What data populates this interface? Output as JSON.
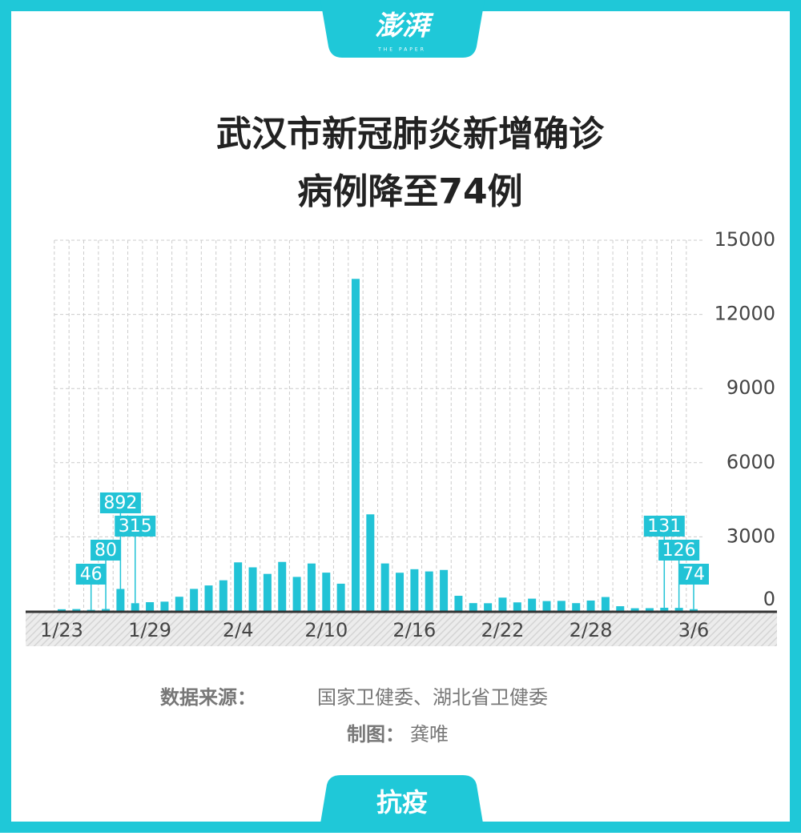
{
  "header": {
    "logo": "澎湃",
    "logo_sub": "THE PAPER"
  },
  "chart_data": {
    "type": "bar",
    "title_lines": [
      "武汉市新冠肺炎新增确诊",
      "病例降至74例"
    ],
    "categories": [
      "1/23",
      null,
      null,
      null,
      null,
      null,
      "1/29",
      null,
      null,
      null,
      null,
      null,
      "2/4",
      null,
      null,
      null,
      null,
      null,
      "2/10",
      null,
      null,
      null,
      null,
      null,
      "2/16",
      null,
      null,
      null,
      null,
      null,
      "2/22",
      null,
      null,
      null,
      null,
      null,
      "2/28",
      null,
      null,
      null,
      null,
      null,
      null,
      "3/6"
    ],
    "values": [
      70,
      77,
      46,
      80,
      892,
      315,
      356,
      378,
      576,
      894,
      1033,
      1242,
      1967,
      1766,
      1501,
      1985,
      1379,
      1921,
      1552,
      1104,
      13436,
      3910,
      1923,
      1548,
      1690,
      1600,
      1660,
      615,
      319,
      314,
      541,
      348,
      499,
      401,
      409,
      318,
      423,
      565,
      193,
      111,
      114,
      131,
      126,
      74
    ],
    "value_labels": [
      null,
      null,
      46,
      80,
      892,
      315,
      null,
      null,
      null,
      null,
      null,
      null,
      null,
      null,
      null,
      null,
      null,
      null,
      null,
      null,
      null,
      null,
      null,
      null,
      null,
      null,
      null,
      null,
      null,
      null,
      null,
      null,
      null,
      null,
      null,
      null,
      null,
      null,
      null,
      null,
      null,
      131,
      126,
      74
    ],
    "color": "#22c3d6",
    "ylim": [
      0,
      15000
    ],
    "yticks": [
      0,
      3000,
      6000,
      9000,
      12000,
      15000
    ],
    "grid": true
  },
  "source": {
    "label": "数据来源：",
    "text": "国家卫健委、湖北省卫健委"
  },
  "credit": {
    "label": "制图：",
    "text": "龚唯"
  },
  "footer": {
    "tag": "抗疫"
  }
}
